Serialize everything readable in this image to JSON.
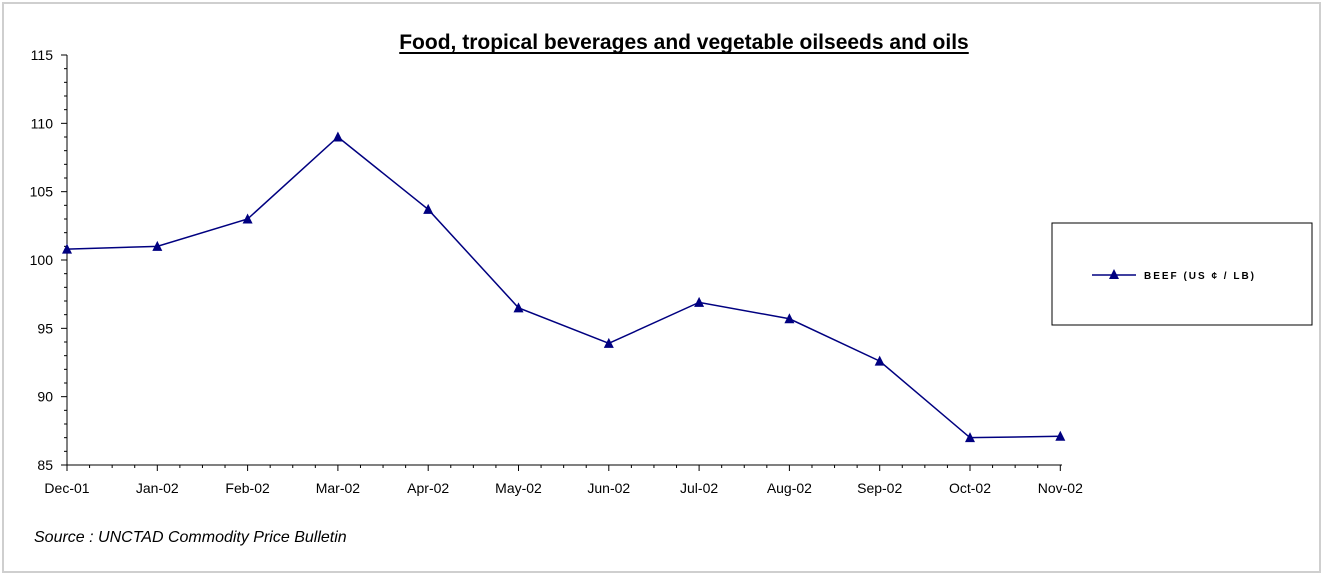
{
  "chart_data": {
    "type": "line",
    "title": "Food, tropical beverages and vegetable oilseeds and oils",
    "categories": [
      "Dec-01",
      "Jan-02",
      "Feb-02",
      "Mar-02",
      "Apr-02",
      "May-02",
      "Jun-02",
      "Jul-02",
      "Aug-02",
      "Sep-02",
      "Oct-02",
      "Nov-02"
    ],
    "series": [
      {
        "name": "BEEF (US ¢ / LB)",
        "values": [
          100.8,
          101.0,
          103.0,
          109.0,
          103.7,
          96.5,
          93.9,
          96.9,
          95.7,
          92.6,
          87.0,
          87.1
        ],
        "color": "#000080",
        "marker": "triangle"
      }
    ],
    "ylim": [
      85,
      115
    ],
    "yticks": [
      85,
      90,
      95,
      100,
      105,
      110,
      115
    ],
    "xlabel": "",
    "ylabel": "",
    "grid": false,
    "legend": "right"
  },
  "source": "Source : UNCTAD Commodity Price Bulletin"
}
